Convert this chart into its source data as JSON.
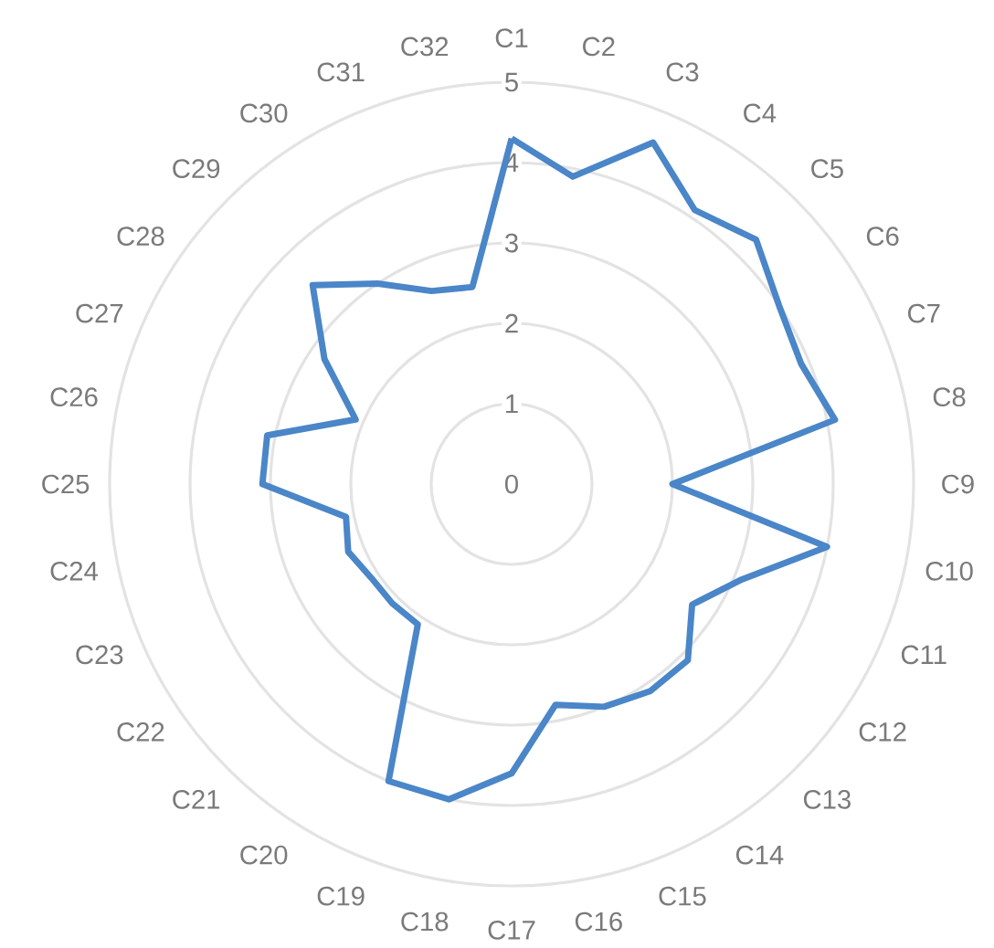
{
  "chart_data": {
    "type": "radar",
    "categories": [
      "C1",
      "C2",
      "C3",
      "C4",
      "C5",
      "C6",
      "C7",
      "C8",
      "C9",
      "C10",
      "C11",
      "C12",
      "C13",
      "C14",
      "C15",
      "C16",
      "C17",
      "C18",
      "C19",
      "C20",
      "C21",
      "C22",
      "C23",
      "C24",
      "C25",
      "C26",
      "C27",
      "C28",
      "C29",
      "C30",
      "C31",
      "C32"
    ],
    "series": [
      {
        "color": "#4a86c8",
        "values": [
          4.3,
          3.9,
          4.6,
          4.1,
          4.3,
          4.0,
          3.9,
          4.1,
          2.0,
          4.0,
          3.1,
          2.7,
          3.1,
          3.1,
          3.0,
          2.8,
          3.6,
          4.0,
          4.0,
          2.1,
          2.1,
          2.1,
          2.2,
          2.1,
          3.1,
          3.1,
          2.1,
          2.8,
          3.5,
          3.0,
          2.6,
          2.5
        ]
      }
    ],
    "ylim": [
      0,
      5
    ],
    "yticks": [
      0,
      1,
      2,
      3,
      4,
      5
    ],
    "grid": true
  }
}
